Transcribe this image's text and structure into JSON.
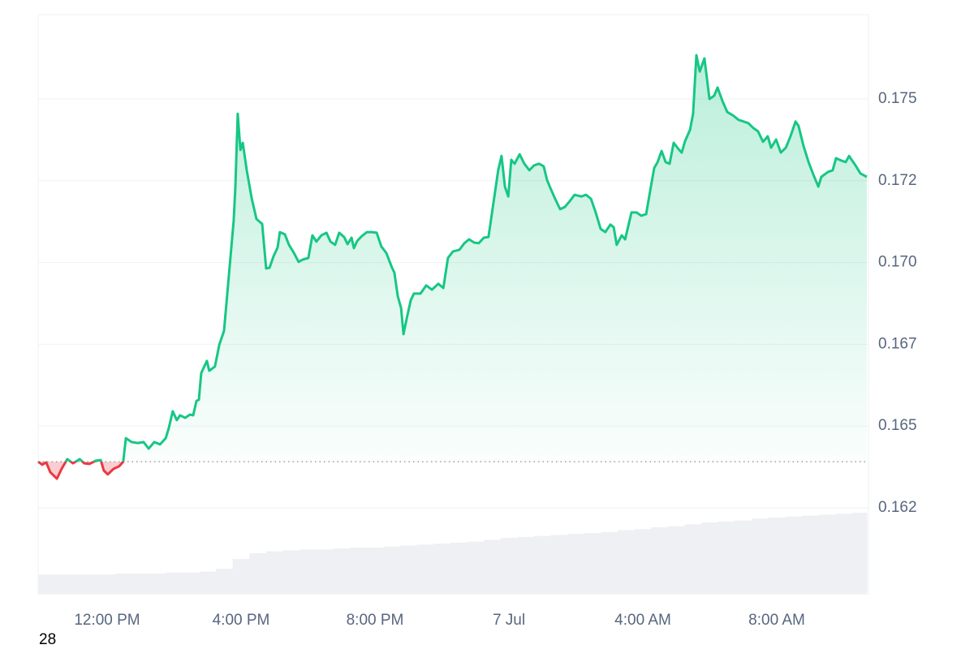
{
  "chart_data": {
    "type": "line",
    "x": [
      9.94,
      10.06,
      10.18,
      10.3,
      10.5,
      10.64,
      10.81,
      10.98,
      11.18,
      11.32,
      11.47,
      11.66,
      11.81,
      11.9,
      12.02,
      12.19,
      12.36,
      12.48,
      12.56,
      12.73,
      12.92,
      13.09,
      13.24,
      13.41,
      13.58,
      13.75,
      13.84,
      13.96,
      14.08,
      14.18,
      14.33,
      14.47,
      14.57,
      14.67,
      14.74,
      14.81,
      14.98,
      15.05,
      15.22,
      15.35,
      15.49,
      15.66,
      15.78,
      15.83,
      15.9,
      15.98,
      16.05,
      16.17,
      16.32,
      16.46,
      16.63,
      16.75,
      16.85,
      16.97,
      17.09,
      17.16,
      17.31,
      17.43,
      17.58,
      17.72,
      17.84,
      18.01,
      18.13,
      18.25,
      18.4,
      18.55,
      18.67,
      18.81,
      18.93,
      19.08,
      19.18,
      19.3,
      19.37,
      19.47,
      19.61,
      19.76,
      19.9,
      20.05,
      20.19,
      20.34,
      20.51,
      20.58,
      20.68,
      20.78,
      20.85,
      20.95,
      21.07,
      21.16,
      21.36,
      21.53,
      21.7,
      21.89,
      22.04,
      22.18,
      22.33,
      22.52,
      22.67,
      22.81,
      22.96,
      23.1,
      23.25,
      23.39,
      23.54,
      23.68,
      23.78,
      23.88,
      23.98,
      24.07,
      24.17,
      24.32,
      24.46,
      24.61,
      24.75,
      24.9,
      25.04,
      25.14,
      25.24,
      25.38,
      25.53,
      25.67,
      25.82,
      25.96,
      26.16,
      26.3,
      26.45,
      26.59,
      26.74,
      26.88,
      27.03,
      27.13,
      27.22,
      27.37,
      27.47,
      27.66,
      27.81,
      27.95,
      28.1,
      28.24,
      28.34,
      28.44,
      28.56,
      28.68,
      28.8,
      28.92,
      29.07,
      29.16,
      29.26,
      29.41,
      29.5,
      29.6,
      29.7,
      29.84,
      29.99,
      30.13,
      30.23,
      30.38,
      30.52,
      30.69,
      30.86,
      31.01,
      31.15,
      31.3,
      31.44,
      31.59,
      31.73,
      31.83,
      31.98,
      32.12,
      32.27,
      32.41,
      32.56,
      32.65,
      32.8,
      32.95,
      33.09,
      33.24,
      33.33,
      33.53,
      33.67,
      33.77,
      33.92,
      34.06,
      34.16,
      34.25,
      34.35,
      34.5,
      34.69
    ],
    "values": [
      0.16391,
      0.16382,
      0.16389,
      0.16359,
      0.16339,
      0.16369,
      0.16399,
      0.16386,
      0.16399,
      0.16386,
      0.16384,
      0.16394,
      0.16396,
      0.16364,
      0.16352,
      0.16369,
      0.16377,
      0.16391,
      0.16463,
      0.16451,
      0.16448,
      0.16451,
      0.16431,
      0.16451,
      0.16444,
      0.16463,
      0.16493,
      0.16545,
      0.16518,
      0.16533,
      0.16525,
      0.16535,
      0.16533,
      0.16577,
      0.1658,
      0.16662,
      0.16699,
      0.16669,
      0.16682,
      0.16749,
      0.16791,
      0.16989,
      0.17128,
      0.17232,
      0.17455,
      0.17344,
      0.17366,
      0.17282,
      0.17195,
      0.17133,
      0.17118,
      0.16982,
      0.16984,
      0.17019,
      0.17046,
      0.17093,
      0.17086,
      0.17054,
      0.17029,
      0.17002,
      0.17009,
      0.17014,
      0.17083,
      0.17064,
      0.17083,
      0.17091,
      0.17064,
      0.17054,
      0.17091,
      0.17078,
      0.17056,
      0.17076,
      0.17044,
      0.17066,
      0.17081,
      0.17093,
      0.17093,
      0.17091,
      0.17049,
      0.17029,
      0.16984,
      0.16969,
      0.16897,
      0.1686,
      0.16781,
      0.1683,
      0.16885,
      0.16905,
      0.16905,
      0.1693,
      0.16917,
      0.16935,
      0.16922,
      0.17014,
      0.17034,
      0.17039,
      0.17059,
      0.17071,
      0.17061,
      0.17059,
      0.17076,
      0.17078,
      0.17183,
      0.17282,
      0.17326,
      0.17232,
      0.17202,
      0.17314,
      0.17302,
      0.17331,
      0.17302,
      0.17282,
      0.17297,
      0.17302,
      0.17294,
      0.17252,
      0.17227,
      0.17195,
      0.17163,
      0.1717,
      0.17188,
      0.17207,
      0.17202,
      0.17207,
      0.17195,
      0.17153,
      0.17103,
      0.17093,
      0.17116,
      0.17108,
      0.17054,
      0.17083,
      0.17071,
      0.17153,
      0.17153,
      0.17143,
      0.17148,
      0.17232,
      0.17289,
      0.17307,
      0.17341,
      0.17307,
      0.17302,
      0.17366,
      0.17346,
      0.17336,
      0.17371,
      0.17406,
      0.17455,
      0.17634,
      0.17584,
      0.17624,
      0.175,
      0.1751,
      0.17535,
      0.17493,
      0.1746,
      0.1745,
      0.17436,
      0.17431,
      0.17426,
      0.17411,
      0.17401,
      0.17369,
      0.17386,
      0.17351,
      0.17376,
      0.17336,
      0.17351,
      0.17386,
      0.17431,
      0.17418,
      0.17356,
      0.17307,
      0.17269,
      0.17232,
      0.17262,
      0.17277,
      0.17282,
      0.17319,
      0.17312,
      0.17307,
      0.17326,
      0.17312,
      0.17297,
      0.17272,
      0.17262
    ],
    "reference_line": 0.16391,
    "up_color": "#16c784",
    "down_color": "#ea3943",
    "volume": {
      "color": "#eef0f3",
      "x": [
        10,
        10.5,
        11,
        11.5,
        12,
        12.5,
        13,
        13.5,
        14,
        14.5,
        15,
        15.5,
        16,
        16.5,
        17,
        17.5,
        18,
        18.5,
        19,
        19.5,
        20,
        20.5,
        21,
        21.5,
        22,
        22.5,
        23,
        23.5,
        24,
        24.5,
        25,
        25.5,
        26,
        26.5,
        27,
        27.5,
        28,
        28.5,
        29,
        29.5,
        30,
        30.5,
        31,
        31.5,
        32,
        32.5,
        33,
        33.5,
        34,
        34.5
      ],
      "values": [
        1.0,
        1.0,
        1.0,
        1.0,
        1.0,
        1.05,
        1.05,
        1.05,
        1.1,
        1.1,
        1.15,
        1.3,
        1.8,
        2.1,
        2.2,
        2.25,
        2.3,
        2.3,
        2.35,
        2.4,
        2.4,
        2.45,
        2.5,
        2.55,
        2.6,
        2.65,
        2.7,
        2.8,
        2.9,
        2.95,
        3.0,
        3.05,
        3.1,
        3.15,
        3.2,
        3.3,
        3.35,
        3.45,
        3.5,
        3.6,
        3.7,
        3.75,
        3.8,
        3.9,
        3.95,
        4.0,
        4.05,
        4.1,
        4.15,
        4.2
      ]
    },
    "xlim": [
      9.94,
      34.69
    ],
    "ylim": [
      0.15987,
      0.17758
    ],
    "y2lim": [
      0,
      30
    ],
    "xticks": [
      {
        "value": 12,
        "label": "12:00 PM"
      },
      {
        "value": 16,
        "label": "4:00 PM"
      },
      {
        "value": 20,
        "label": "8:00 PM"
      },
      {
        "value": 24,
        "label": "7 Jul"
      },
      {
        "value": 28,
        "label": "4:00 AM"
      },
      {
        "value": 32,
        "label": "8:00 AM"
      }
    ],
    "yticks": [
      {
        "value": 0.1625,
        "label": "0.162"
      },
      0.165,
      {
        "value": 0.1675,
        "label": "0.167"
      },
      {
        "value": 0.17,
        "label": "0.170"
      },
      {
        "value": 0.1725,
        "label": "0.172"
      },
      0.175
    ],
    "grid": true
  },
  "footer_label": "28"
}
